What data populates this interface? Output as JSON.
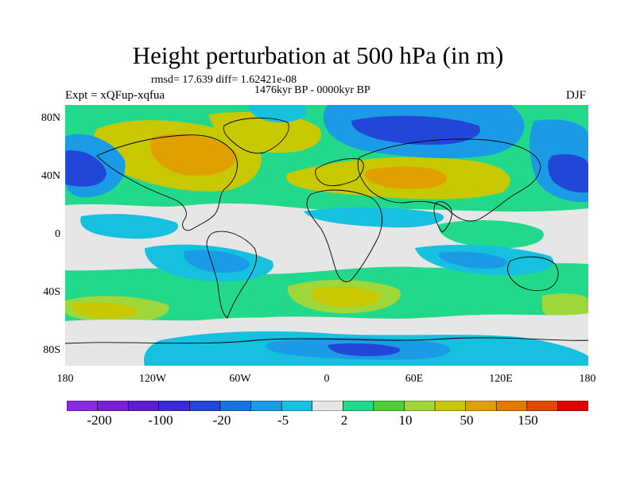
{
  "title": "Height perturbation at 500 hPa (in m)",
  "stats_text": "rmsd= 17.639 diff= 1.62421e-08",
  "period_text": "1476kyr BP - 0000kyr BP",
  "experiment_text": "Expt = xQFup-xqfua",
  "season": "DJF",
  "lat_labels": [
    "80N",
    "40N",
    "0",
    "40S",
    "80S"
  ],
  "lon_labels": [
    "180",
    "120W",
    "60W",
    "0",
    "60E",
    "120E",
    "180"
  ],
  "colorbar": {
    "colors": [
      "#8a2be2",
      "#7a1fd6",
      "#5c1fd0",
      "#3a2bd6",
      "#2247d8",
      "#1a74e0",
      "#1b9be6",
      "#16c0df",
      "#e6e6e6",
      "#22d88a",
      "#4fce3a",
      "#9fd63a",
      "#c8c800",
      "#e0a000",
      "#e07a00",
      "#e04800",
      "#e00000"
    ],
    "labels": [
      "-200",
      "-100",
      "-20",
      "-5",
      "2",
      "10",
      "50",
      "150"
    ]
  },
  "field_colors": {
    "neutral": "#e6e6e6",
    "neg_weak": "#16c0df",
    "neg_mid": "#1b9be6",
    "neg_strong": "#2247d8",
    "neg_very": "#3a2bd6",
    "pos_weak": "#22d88a",
    "pos_mid": "#4fce3a",
    "pos_strong": "#9fd63a",
    "pos_very": "#c8c800",
    "pos_max": "#e0a000"
  }
}
